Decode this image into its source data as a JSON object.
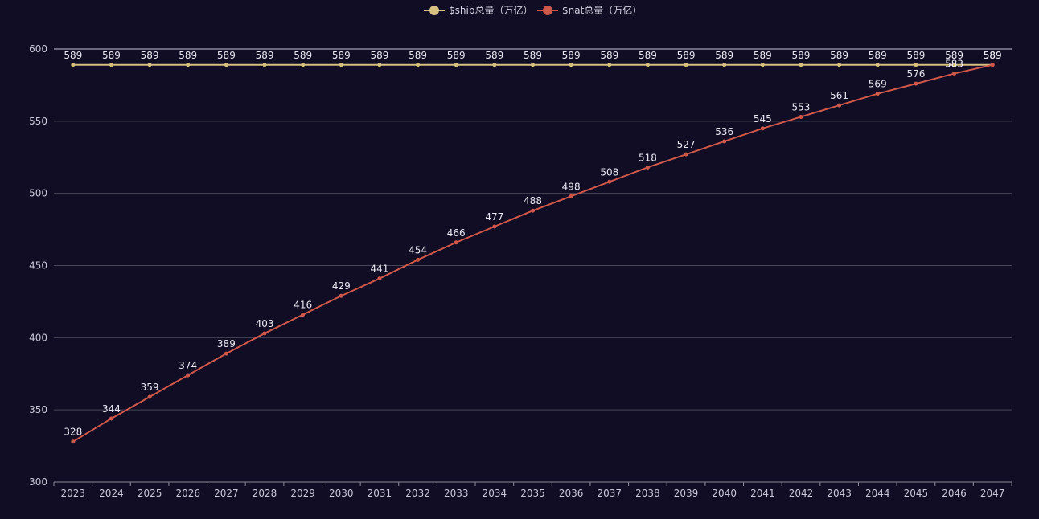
{
  "colors": {
    "background": "#110d24",
    "grid": "#4a4658",
    "axis": "#8a8698",
    "shib": "#d8c080",
    "nat": "#d0584a"
  },
  "chart_data": {
    "type": "line",
    "title": "",
    "xlabel": "",
    "ylabel": "",
    "legend_position": "top-center",
    "grid": true,
    "ylim": [
      300,
      600
    ],
    "y_ticks": [
      300,
      350,
      400,
      450,
      500,
      550,
      600
    ],
    "categories": [
      "2023",
      "2024",
      "2025",
      "2026",
      "2027",
      "2028",
      "2029",
      "2030",
      "2031",
      "2032",
      "2033",
      "2034",
      "2035",
      "2036",
      "2037",
      "2038",
      "2039",
      "2040",
      "2041",
      "2042",
      "2043",
      "2044",
      "2045",
      "2046",
      "2047"
    ],
    "series": [
      {
        "name": "$shib总量（万亿）",
        "color": "#d8c080",
        "values": [
          589,
          589,
          589,
          589,
          589,
          589,
          589,
          589,
          589,
          589,
          589,
          589,
          589,
          589,
          589,
          589,
          589,
          589,
          589,
          589,
          589,
          589,
          589,
          589,
          589
        ]
      },
      {
        "name": "$nat总量（万亿）",
        "color": "#d0584a",
        "values": [
          328,
          344,
          359,
          374,
          389,
          403,
          416,
          429,
          441,
          454,
          466,
          477,
          488,
          498,
          508,
          518,
          527,
          536,
          545,
          553,
          561,
          569,
          576,
          583,
          589
        ]
      }
    ]
  }
}
